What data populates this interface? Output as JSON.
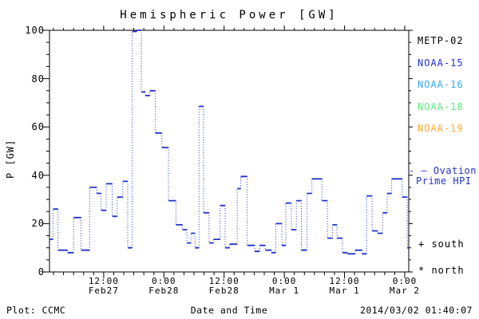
{
  "figure": {
    "background": "#ffffff"
  },
  "chart_data": {
    "type": "line",
    "style": "stepped-dotted-histogram",
    "title": "Hemispheric Power [GW]",
    "xlabel": "Date and Time",
    "ylabel": "P [GW]",
    "ylim": [
      0,
      100
    ],
    "yticks": [
      0,
      20,
      40,
      60,
      80,
      100
    ],
    "y_minor_step": 5,
    "x_range_hours": [
      1.2,
      72.8
    ],
    "x_minor_step_hours": 2,
    "xticks": [
      {
        "hour": 12,
        "time": "12:00",
        "date": "Feb27"
      },
      {
        "hour": 24,
        "time": "0:00",
        "date": "Feb28"
      },
      {
        "hour": 36,
        "time": "12:00",
        "date": "Feb28"
      },
      {
        "hour": 48,
        "time": "0:00",
        "date": "Mar 1"
      },
      {
        "hour": 60,
        "time": "12:00",
        "date": "Mar 1"
      },
      {
        "hour": 72,
        "time": "0:00",
        "date": "Mar 2"
      }
    ],
    "grid": false,
    "legend_position": "right-outside",
    "series_name": "Ovation Prime HPI",
    "line_color": "#2233cc",
    "steps_hour_start_end_value": [
      [
        1.2,
        1.9,
        13.5
      ],
      [
        1.9,
        2.9,
        26
      ],
      [
        2.9,
        4.8,
        9
      ],
      [
        4.8,
        6.0,
        8
      ],
      [
        6.0,
        7.5,
        22.5
      ],
      [
        7.5,
        9.2,
        9
      ],
      [
        9.2,
        10.6,
        35
      ],
      [
        10.6,
        11.5,
        32.5
      ],
      [
        11.5,
        12.5,
        25.5
      ],
      [
        12.5,
        13.7,
        36.5
      ],
      [
        13.7,
        14.7,
        23
      ],
      [
        14.7,
        15.8,
        31
      ],
      [
        15.8,
        16.8,
        37.5
      ],
      [
        16.8,
        17.7,
        10
      ],
      [
        17.7,
        18.6,
        99.5
      ],
      [
        18.6,
        19.5,
        100
      ],
      [
        19.5,
        20.3,
        74.5
      ],
      [
        20.3,
        21.2,
        73
      ],
      [
        21.2,
        22.3,
        75
      ],
      [
        22.3,
        23.6,
        57.5
      ],
      [
        23.6,
        24.9,
        51.5
      ],
      [
        24.9,
        26.4,
        29.5
      ],
      [
        26.4,
        27.7,
        19.5
      ],
      [
        27.7,
        28.6,
        17.5
      ],
      [
        28.6,
        29.4,
        12
      ],
      [
        29.4,
        30.2,
        16
      ],
      [
        30.2,
        31.0,
        10
      ],
      [
        31.0,
        31.9,
        68.5
      ],
      [
        31.9,
        33.0,
        24.5
      ],
      [
        33.0,
        33.9,
        12
      ],
      [
        33.9,
        35.2,
        13.5
      ],
      [
        35.2,
        36.2,
        27.5
      ],
      [
        36.2,
        37.1,
        10
      ],
      [
        37.1,
        38.6,
        11.5
      ],
      [
        38.6,
        39.3,
        34.5
      ],
      [
        39.3,
        40.6,
        39.5
      ],
      [
        40.6,
        42.1,
        11
      ],
      [
        42.1,
        43.1,
        8.5
      ],
      [
        43.1,
        44.2,
        11
      ],
      [
        44.2,
        45.4,
        9
      ],
      [
        45.4,
        46.3,
        8
      ],
      [
        46.3,
        47.5,
        20
      ],
      [
        47.5,
        48.3,
        11
      ],
      [
        48.3,
        49.4,
        28.5
      ],
      [
        49.4,
        50.4,
        17.5
      ],
      [
        50.4,
        51.4,
        29.5
      ],
      [
        51.4,
        52.5,
        9
      ],
      [
        52.5,
        53.5,
        32.5
      ],
      [
        53.5,
        55.5,
        38.5
      ],
      [
        55.5,
        56.6,
        29.5
      ],
      [
        56.6,
        57.6,
        14
      ],
      [
        57.6,
        58.5,
        19.5
      ],
      [
        58.5,
        59.6,
        14
      ],
      [
        59.6,
        60.6,
        8
      ],
      [
        60.6,
        62.1,
        7.5
      ],
      [
        62.1,
        63.5,
        9
      ],
      [
        63.5,
        64.4,
        7.5
      ],
      [
        64.4,
        65.5,
        31.5
      ],
      [
        65.5,
        66.6,
        17
      ],
      [
        66.6,
        67.6,
        16
      ],
      [
        67.6,
        68.5,
        24.5
      ],
      [
        68.5,
        69.4,
        32.5
      ],
      [
        69.4,
        71.5,
        38.5
      ],
      [
        71.5,
        72.5,
        31
      ],
      [
        72.5,
        72.8,
        10
      ]
    ]
  },
  "legend": {
    "satellites": [
      {
        "label": "METP-02",
        "color": "#000000"
      },
      {
        "label": "NOAA-15",
        "color": "#2233cc"
      },
      {
        "label": "NOAA-16",
        "color": "#33aaff"
      },
      {
        "label": "NOAA-18",
        "color": "#5ce87a"
      },
      {
        "label": "NOAA-19",
        "color": "#ffaa33"
      }
    ],
    "line_sample": "- —",
    "line_label_1": "Ovation",
    "line_label_2": "Prime HPI",
    "line_label_color": "#2233cc",
    "marker_south": "+ south",
    "marker_north": "* north"
  },
  "footer": {
    "plot_source": "Plot: CCMC",
    "timestamp": "2014/03/02 01:40:07"
  }
}
